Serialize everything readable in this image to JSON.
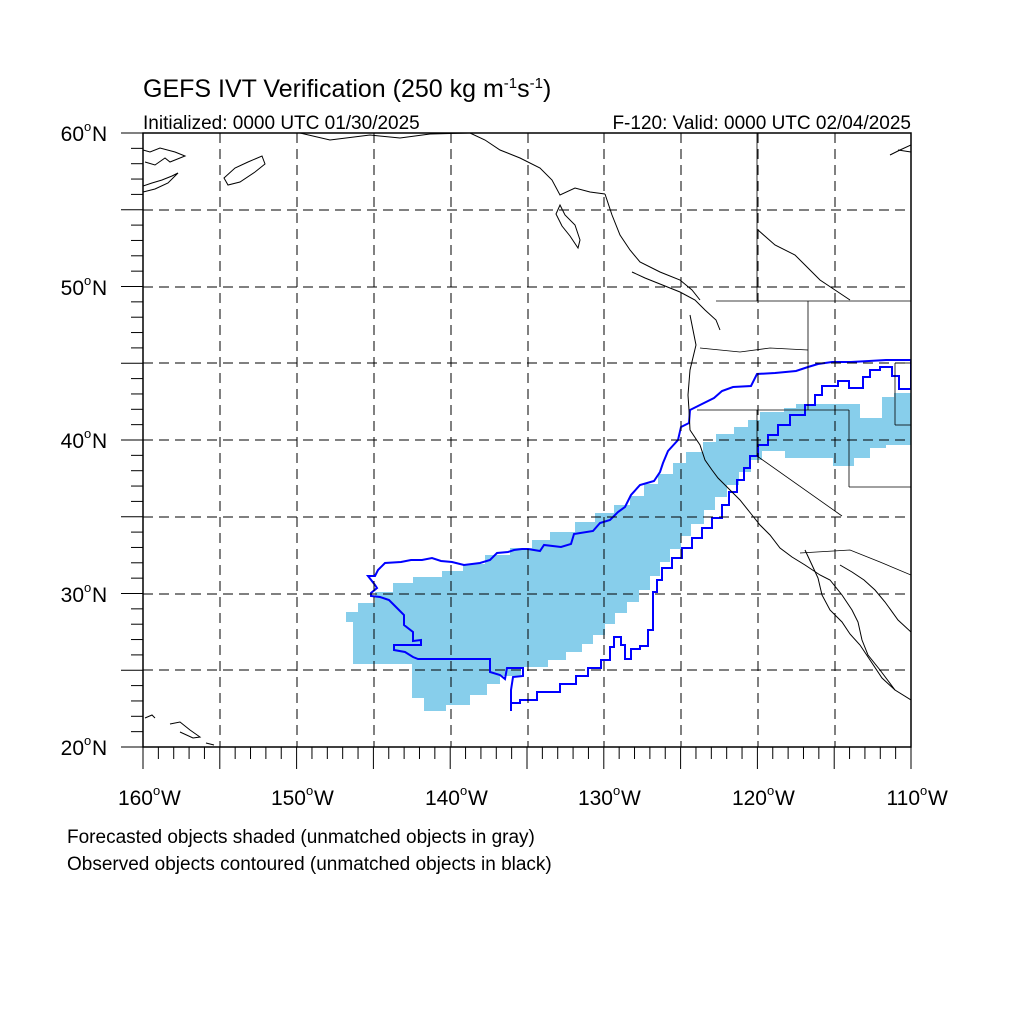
{
  "header": {
    "title_main": "GEFS IVT Verification (250 kg m",
    "title_sup1": "-1",
    "title_mid": "s",
    "title_sup2": "-1",
    "title_end": ")",
    "initialized": "Initialized: 0000 UTC 01/30/2025",
    "valid": "F-120: Valid: 0000 UTC 02/04/2025"
  },
  "axes": {
    "lat_labels": [
      "60",
      "50",
      "40",
      "30",
      "20"
    ],
    "lat_suffix": "N",
    "lon_labels": [
      "160",
      "150",
      "140",
      "130",
      "120",
      "110"
    ],
    "lon_suffix": "W",
    "degree": "o"
  },
  "footer": {
    "line1": "Forecasted objects shaded (unmatched objects in gray)",
    "line2": "Observed objects contoured (unmatched objects in black)"
  },
  "colors": {
    "forecast_fill": "#87ceeb",
    "observed_contour": "#0000ff",
    "coast": "#000000",
    "grid": "#000000"
  },
  "map": {
    "projection": "cylindrical equidistant",
    "lon_range": [
      -160,
      -110
    ],
    "lat_range": [
      20,
      60
    ],
    "grid_spacing_deg": 5,
    "grid_style": "dashed"
  }
}
